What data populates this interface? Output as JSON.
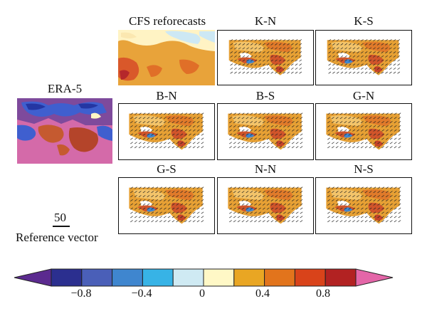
{
  "panels": {
    "era5": {
      "title": "ERA-5"
    },
    "cfs": {
      "title": "CFS reforecasts"
    },
    "kn": {
      "title": "K-N"
    },
    "ks": {
      "title": "K-S"
    },
    "bn": {
      "title": "B-N"
    },
    "bs": {
      "title": "B-S"
    },
    "gn": {
      "title": "G-N"
    },
    "gs": {
      "title": "G-S"
    },
    "nn": {
      "title": "N-N"
    },
    "ns": {
      "title": "N-S"
    }
  },
  "reference": {
    "value": "50",
    "label": "Reference vector"
  },
  "colorbar": {
    "colors": [
      "#5b2a8f",
      "#2b2f8f",
      "#4a5fb8",
      "#3f86cf",
      "#37b3e6",
      "#cfeaf3",
      "#fff8c6",
      "#e9a623",
      "#e2741c",
      "#d9431a",
      "#b22222",
      "#e466a8"
    ],
    "tick_labels": [
      "−0.8",
      "−0.4",
      "0",
      "0.4",
      "0.8"
    ]
  }
}
